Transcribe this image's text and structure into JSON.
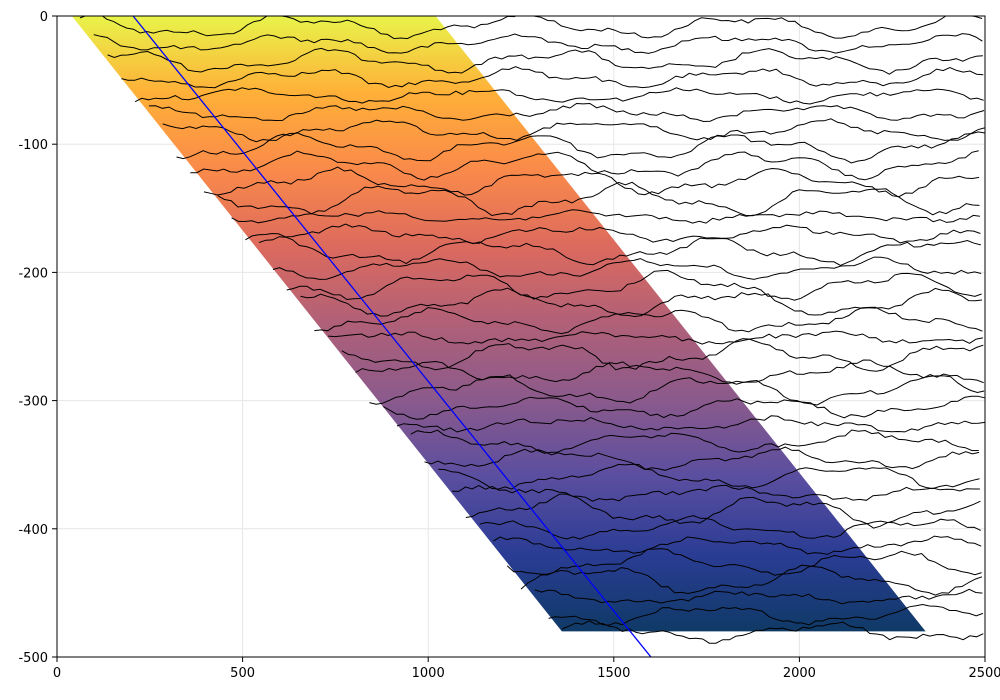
{
  "chart_data": {
    "type": "heatmap",
    "title": "",
    "xlabel": "",
    "ylabel": "",
    "xlim": [
      0,
      2500
    ],
    "ylim": [
      -500,
      0
    ],
    "x_ticks": [
      0,
      500,
      1000,
      1500,
      2000,
      2500
    ],
    "y_ticks": [
      0,
      -100,
      -200,
      -300,
      -400,
      -500
    ],
    "x_tick_labels": [
      "0",
      "500",
      "1000",
      "1500",
      "2000",
      "2500"
    ],
    "y_tick_labels": [
      "0",
      "-100",
      "-200",
      "-300",
      "-400",
      "-500"
    ],
    "grid": true,
    "colormap": {
      "name": "thermal",
      "stops": [
        "#e8f44a",
        "#ffb038",
        "#fa8a4a",
        "#dc6a5e",
        "#b06078",
        "#8a5a8c",
        "#5a4ea0",
        "#2a3c94",
        "#0f3a66"
      ]
    },
    "filled_region": {
      "description": "sheared colored band",
      "left_edge": [
        [
          40,
          0
        ],
        [
          1360,
          -480
        ]
      ],
      "right_edge": [
        [
          1020,
          0
        ],
        [
          2340,
          -480
        ]
      ],
      "y_range": [
        -480,
        0
      ],
      "color_by": "depth"
    },
    "contours": {
      "color": "#000000",
      "x_range": [
        40,
        2500
      ],
      "levels": 36,
      "y_start": -8,
      "y_step": -13.5
    },
    "reference_line": {
      "color": "#0000ff",
      "points": [
        [
          205,
          0
        ],
        [
          1600,
          -500
        ]
      ]
    }
  }
}
